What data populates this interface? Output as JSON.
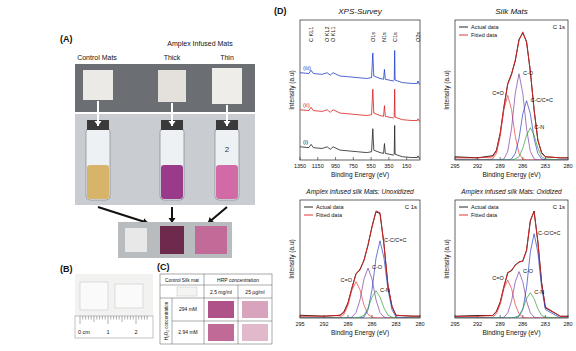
{
  "chart_data": [
    {
      "type": "line",
      "title": "XPS-Survey",
      "xlabel": "Binding Energy (eV)",
      "ylabel": "Intensity (a.u)",
      "xlim": [
        1350,
        0
      ],
      "xticks": [
        1350,
        1150,
        950,
        750,
        550,
        350,
        150
      ],
      "ylim": [
        0,
        17
      ],
      "tick_labels": "x",
      "x": [
        1350,
        1250,
        1225,
        1200,
        1100,
        1045,
        1010,
        978,
        900,
        800,
        700,
        600,
        545,
        531,
        520,
        450,
        410,
        400,
        390,
        300,
        290,
        285,
        280,
        200,
        100,
        30,
        23,
        15,
        0
      ],
      "series": [
        {
          "name": "(i)",
          "color": "#222222",
          "line_style": "solid",
          "values": [
            1.6,
            1.5,
            1.9,
            1.5,
            1.4,
            1.6,
            1.3,
            1.6,
            1.2,
            1.1,
            1.0,
            0.9,
            1.0,
            3.8,
            1.2,
            0.9,
            0.8,
            2.0,
            0.8,
            0.6,
            0.7,
            4.2,
            0.7,
            0.4,
            0.3,
            0.3,
            0.5,
            0.3,
            0.2
          ]
        },
        {
          "name": "(ii)",
          "color": "#d62020",
          "line_style": "solid",
          "values": [
            6.1,
            6.0,
            6.4,
            6.0,
            5.9,
            6.1,
            5.8,
            6.1,
            5.7,
            5.6,
            5.5,
            5.4,
            5.5,
            8.6,
            5.7,
            5.4,
            5.3,
            6.6,
            5.3,
            5.1,
            5.2,
            8.6,
            5.2,
            4.9,
            4.8,
            4.8,
            5.0,
            4.8,
            4.7
          ]
        },
        {
          "name": "(iii)",
          "color": "#2040c8",
          "line_style": "solid",
          "values": [
            10.6,
            10.5,
            10.9,
            10.5,
            10.4,
            10.6,
            10.3,
            10.6,
            10.2,
            10.1,
            10.0,
            9.9,
            10.0,
            13.0,
            10.2,
            9.9,
            9.8,
            11.0,
            9.8,
            9.6,
            9.7,
            13.3,
            9.7,
            9.4,
            9.3,
            9.3,
            9.6,
            9.3,
            9.2
          ]
        }
      ],
      "annotations": [
        {
          "text": "C KL1",
          "x": 1225
        },
        {
          "text": "O KL2",
          "x": 1045
        },
        {
          "text": "O KL1",
          "x": 978
        },
        {
          "text": "O1s",
          "x": 531
        },
        {
          "text": "N1s",
          "x": 400
        },
        {
          "text": "C1s",
          "x": 285
        },
        {
          "text": "O2s",
          "x": 23
        }
      ]
    },
    {
      "type": "line",
      "title": "Silk Mats",
      "xlabel": "Binding Energy (eV)",
      "ylabel": "Intensity (a.u)",
      "xlim": [
        295,
        280
      ],
      "xticks": [
        295,
        292,
        289,
        286,
        283,
        280
      ],
      "ylim": [
        0,
        1.3
      ],
      "tick_labels": "x",
      "legend": "upper left",
      "x": [
        295,
        292,
        290,
        289.5,
        289,
        288.5,
        288,
        287.5,
        287,
        286.5,
        286,
        285.5,
        285,
        284.5,
        284,
        283.5,
        283,
        281,
        280
      ],
      "series": [
        {
          "name": "Actual data",
          "type": "line",
          "color": "#111111",
          "line_style": "solid",
          "values": [
            0.03,
            0.02,
            0.04,
            0.09,
            0.25,
            0.49,
            0.71,
            0.8,
            0.92,
            1.12,
            1.18,
            1.1,
            0.82,
            0.47,
            0.18,
            0.07,
            0.03,
            0.02,
            0.02
          ]
        },
        {
          "name": "Fitted data",
          "type": "line",
          "color": "#e02020",
          "line_style": "solid",
          "values": [
            0.02,
            0.02,
            0.03,
            0.08,
            0.24,
            0.5,
            0.7,
            0.79,
            0.93,
            1.11,
            1.19,
            1.09,
            0.83,
            0.46,
            0.19,
            0.06,
            0.03,
            0.02,
            0.02
          ]
        },
        {
          "name": "C=O",
          "type": "component",
          "color": "#e8383d",
          "line_style": "solid",
          "values": [
            0,
            0,
            0.01,
            0.06,
            0.22,
            0.47,
            0.6,
            0.47,
            0.22,
            0.06,
            0.01,
            0,
            0,
            0,
            0,
            0,
            0,
            0,
            0
          ]
        },
        {
          "name": "C-O",
          "type": "component",
          "color": "#7b3fa0",
          "line_style": "solid",
          "values": [
            0,
            0,
            0,
            0,
            0,
            0.01,
            0.08,
            0.29,
            0.62,
            0.8,
            0.62,
            0.29,
            0.08,
            0.01,
            0,
            0,
            0,
            0,
            0
          ]
        },
        {
          "name": "C-C/C=C",
          "type": "component",
          "color": "#2b3fbf",
          "line_style": "solid",
          "values": [
            0,
            0,
            0,
            0,
            0,
            0,
            0,
            0.01,
            0.06,
            0.2,
            0.43,
            0.55,
            0.43,
            0.2,
            0.06,
            0.01,
            0,
            0,
            0
          ]
        },
        {
          "name": "C-N",
          "type": "component",
          "color": "#2e9e3e",
          "line_style": "solid",
          "values": [
            0,
            0,
            0,
            0,
            0,
            0,
            0,
            0,
            0.01,
            0.03,
            0.11,
            0.23,
            0.3,
            0.23,
            0.11,
            0.03,
            0.01,
            0,
            0
          ]
        }
      ],
      "annotations": [
        "C 1s"
      ]
    },
    {
      "type": "line",
      "title": "Amplex infused silk Mats: Unoxidized",
      "xlabel": "Binding Energy (eV)",
      "ylabel": "Intensity (a.u)",
      "xlim": [
        295,
        280
      ],
      "xticks": [
        295,
        292,
        289,
        286,
        283,
        280
      ],
      "ylim": [
        0,
        1.3
      ],
      "tick_labels": "x",
      "legend": "upper left",
      "x": [
        295,
        292,
        290,
        289.5,
        289,
        288.5,
        288,
        287.5,
        287,
        286.5,
        286,
        285.5,
        285,
        284.5,
        284,
        283.5,
        283,
        281,
        280
      ],
      "series": [
        {
          "name": "Actual data",
          "type": "line",
          "color": "#111111",
          "line_style": "solid",
          "values": [
            0.03,
            0.02,
            0.03,
            0.07,
            0.17,
            0.33,
            0.49,
            0.53,
            0.64,
            0.8,
            1.01,
            1.17,
            1.15,
            0.81,
            0.35,
            0.13,
            0.03,
            0.02,
            0.02
          ]
        },
        {
          "name": "Fitted data",
          "type": "line",
          "color": "#e02020",
          "line_style": "solid",
          "values": [
            0.02,
            0.02,
            0.03,
            0.06,
            0.16,
            0.34,
            0.48,
            0.54,
            0.63,
            0.81,
            1.0,
            1.18,
            1.16,
            0.8,
            0.36,
            0.12,
            0.03,
            0.02,
            0.02
          ]
        },
        {
          "name": "C=O",
          "type": "component",
          "color": "#e8383d",
          "line_style": "solid",
          "values": [
            0,
            0,
            0.01,
            0.04,
            0.14,
            0.31,
            0.4,
            0.31,
            0.14,
            0.04,
            0.01,
            0,
            0,
            0,
            0,
            0,
            0,
            0,
            0
          ]
        },
        {
          "name": "C-O",
          "type": "component",
          "color": "#7b3fa0",
          "line_style": "solid",
          "values": [
            0,
            0,
            0,
            0,
            0,
            0.01,
            0.06,
            0.2,
            0.43,
            0.55,
            0.43,
            0.2,
            0.06,
            0.01,
            0,
            0,
            0,
            0,
            0
          ]
        },
        {
          "name": "C-C/C=C",
          "type": "component",
          "color": "#2b3fbf",
          "line_style": "solid",
          "values": [
            0,
            0,
            0,
            0,
            0,
            0,
            0,
            0,
            0.01,
            0.09,
            0.31,
            0.66,
            0.85,
            0.66,
            0.31,
            0.09,
            0.01,
            0,
            0
          ]
        },
        {
          "name": "C-N",
          "type": "component",
          "color": "#2e9e3e",
          "line_style": "solid",
          "values": [
            0,
            0,
            0,
            0,
            0,
            0,
            0,
            0.01,
            0.03,
            0.11,
            0.23,
            0.3,
            0.23,
            0.11,
            0.03,
            0.01,
            0,
            0,
            0
          ]
        }
      ],
      "annotations": [
        "C 1s"
      ]
    },
    {
      "type": "line",
      "title": "Amplex infused silk Mats: Oxidized",
      "xlabel": "Binding Energy (eV)",
      "ylabel": "Intensity (a.u)",
      "xlim": [
        295,
        280
      ],
      "xticks": [
        295,
        292,
        289,
        286,
        283,
        280
      ],
      "ylim": [
        0,
        1.4
      ],
      "tick_labels": "x",
      "legend": "upper left",
      "x": [
        295,
        292,
        290,
        289.5,
        289,
        288.5,
        288,
        287.5,
        287,
        286.5,
        286,
        285.5,
        285,
        284.5,
        284,
        283.5,
        283,
        281,
        280
      ],
      "series": [
        {
          "name": "Actual data",
          "type": "line",
          "color": "#111111",
          "line_style": "solid",
          "values": [
            0.02,
            0.03,
            0.03,
            0.08,
            0.19,
            0.37,
            0.54,
            0.56,
            0.63,
            0.66,
            0.68,
            0.8,
            1.15,
            1.27,
            0.9,
            0.42,
            0.12,
            0.02,
            0.02
          ]
        },
        {
          "name": "Fitted data",
          "type": "line",
          "color": "#e02020",
          "line_style": "solid",
          "values": [
            0.02,
            0.02,
            0.03,
            0.07,
            0.18,
            0.38,
            0.53,
            0.57,
            0.62,
            0.67,
            0.67,
            0.81,
            1.16,
            1.26,
            0.91,
            0.41,
            0.13,
            0.02,
            0.02
          ]
        },
        {
          "name": "C=O",
          "type": "component",
          "color": "#e8383d",
          "line_style": "solid",
          "values": [
            0,
            0,
            0.01,
            0.05,
            0.16,
            0.35,
            0.45,
            0.35,
            0.16,
            0.05,
            0.01,
            0,
            0,
            0,
            0,
            0,
            0,
            0,
            0
          ]
        },
        {
          "name": "C-O",
          "type": "component",
          "color": "#7b3fa0",
          "line_style": "solid",
          "values": [
            0,
            0,
            0,
            0,
            0,
            0.01,
            0.06,
            0.2,
            0.43,
            0.55,
            0.43,
            0.2,
            0.06,
            0.01,
            0,
            0,
            0,
            0,
            0
          ]
        },
        {
          "name": "C-C/C=C",
          "type": "component",
          "color": "#2b3fbf",
          "line_style": "solid",
          "values": [
            0,
            0,
            0,
            0,
            0,
            0,
            0,
            0,
            0,
            0.02,
            0.1,
            0.36,
            0.78,
            1.0,
            0.78,
            0.36,
            0.1,
            0,
            0
          ]
        },
        {
          "name": "C-N",
          "type": "component",
          "color": "#2e9e3e",
          "line_style": "solid",
          "values": [
            0,
            0,
            0,
            0,
            0,
            0,
            0,
            0,
            0.01,
            0.03,
            0.11,
            0.23,
            0.3,
            0.23,
            0.11,
            0.03,
            0.01,
            0,
            0
          ]
        }
      ],
      "annotations": [
        "C 1s"
      ]
    }
  ],
  "figure": {
    "panel_labels": [
      "(A)",
      "(B)",
      "(C)",
      "(D)"
    ],
    "panel_a": {
      "control": "Control Mats",
      "infused": "Amplex Infused Mats",
      "thick": "Thick",
      "thin": "Thin",
      "vial_mark": "2"
    },
    "panel_b": {
      "ruler": [
        "0 cm",
        "1",
        "2"
      ]
    },
    "panel_c": {
      "corner": "Control Silk mat",
      "hrp": "HRP concentration",
      "hrp_levels": [
        "2.5 mg/ml",
        "25 µg/ml"
      ],
      "h2o2": "H₂O₂ concentration",
      "h2o2_levels": [
        "294 mM",
        "2.94 mM"
      ]
    }
  }
}
